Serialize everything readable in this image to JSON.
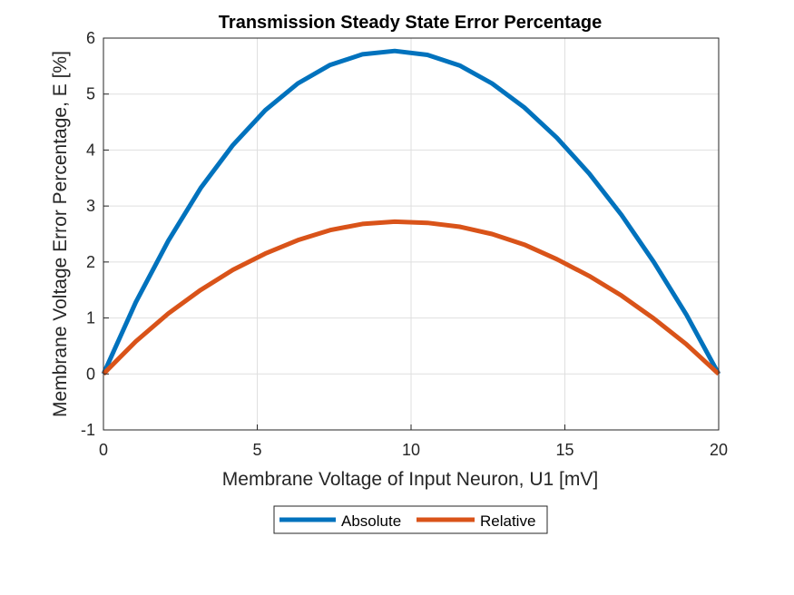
{
  "chart_data": {
    "type": "line",
    "title": "Transmission Steady State Error Percentage",
    "xlabel": "Membrane Voltage of Input Neuron, U1 [mV]",
    "ylabel": "Membrane Voltage Error Percentage, E [%]",
    "xlim": [
      0,
      20
    ],
    "ylim": [
      -1,
      6
    ],
    "xticks": [
      0,
      5,
      10,
      15,
      20
    ],
    "yticks": [
      -1,
      0,
      1,
      2,
      3,
      4,
      5,
      6
    ],
    "grid": true,
    "legend_position": "bottom-outside",
    "x": [
      0,
      1.05,
      2.11,
      3.16,
      4.21,
      5.26,
      6.32,
      7.37,
      8.42,
      9.47,
      10.53,
      11.58,
      12.63,
      13.68,
      14.74,
      15.79,
      16.84,
      17.89,
      18.95,
      20
    ],
    "series": [
      {
        "name": "Absolute",
        "color": "#0072BD",
        "values": [
          0,
          1.28,
          2.38,
          3.32,
          4.09,
          4.71,
          5.19,
          5.52,
          5.71,
          5.77,
          5.7,
          5.51,
          5.19,
          4.76,
          4.22,
          3.58,
          2.84,
          2.0,
          1.06,
          0
        ]
      },
      {
        "name": "Relative",
        "color": "#D95319",
        "values": [
          0,
          0.58,
          1.08,
          1.5,
          1.86,
          2.15,
          2.39,
          2.57,
          2.68,
          2.72,
          2.7,
          2.63,
          2.5,
          2.31,
          2.05,
          1.75,
          1.4,
          0.99,
          0.53,
          0
        ]
      }
    ]
  }
}
